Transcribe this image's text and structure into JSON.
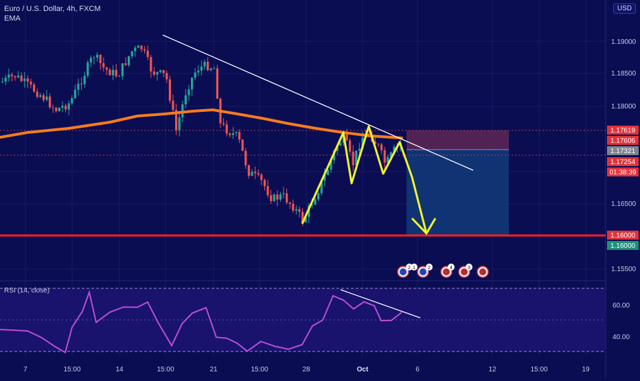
{
  "header": {
    "symbol_line": "Euro / U.S. Dollar, 4h, FXCM",
    "indicator": "EMA",
    "currency": "USD"
  },
  "rsi": {
    "label": "RSI (14, close)"
  },
  "price_axis": {
    "ticks": [
      "1.19000",
      "1.18500",
      "1.18000",
      "1.16500",
      "1.15500"
    ],
    "tags": {
      "high": "1.17619",
      "ema": "1.17606",
      "last": "1.17321",
      "stop": "1.17254",
      "timer": "01:38:39",
      "target": "1.16000",
      "target2": "1.16000"
    }
  },
  "rsi_axis": {
    "ticks": [
      "60.00",
      "40.00"
    ]
  },
  "time_axis": {
    "ticks": [
      "7",
      "15:00",
      "14",
      "15:00",
      "21",
      "15:00",
      "28",
      "Oct",
      "6",
      "12",
      "15:00",
      "19"
    ]
  },
  "events": {
    "e1": "2",
    "e2": "1",
    "e3": "2",
    "e4": "4",
    "e5": "3"
  },
  "colors": {
    "background": "#0b0d52",
    "up_candle": "#26a69a",
    "down_candle": "#ef5350",
    "ema": "#f57c1f",
    "pattern": "#f2f52d",
    "support": "#ff1f1f",
    "rsi": "#b84fd6",
    "trend": "#ffffff"
  },
  "chart_data": {
    "type": "candlestick",
    "symbol": "EURUSD",
    "timeframe": "4h",
    "price_range": [
      1.153,
      1.193
    ],
    "support_level": 1.16,
    "ema_approx": [
      1.1762,
      1.1768,
      1.1775,
      1.1785,
      1.179,
      1.1785,
      1.1772,
      1.1762
    ],
    "rsi_range": [
      28,
      72
    ]
  }
}
